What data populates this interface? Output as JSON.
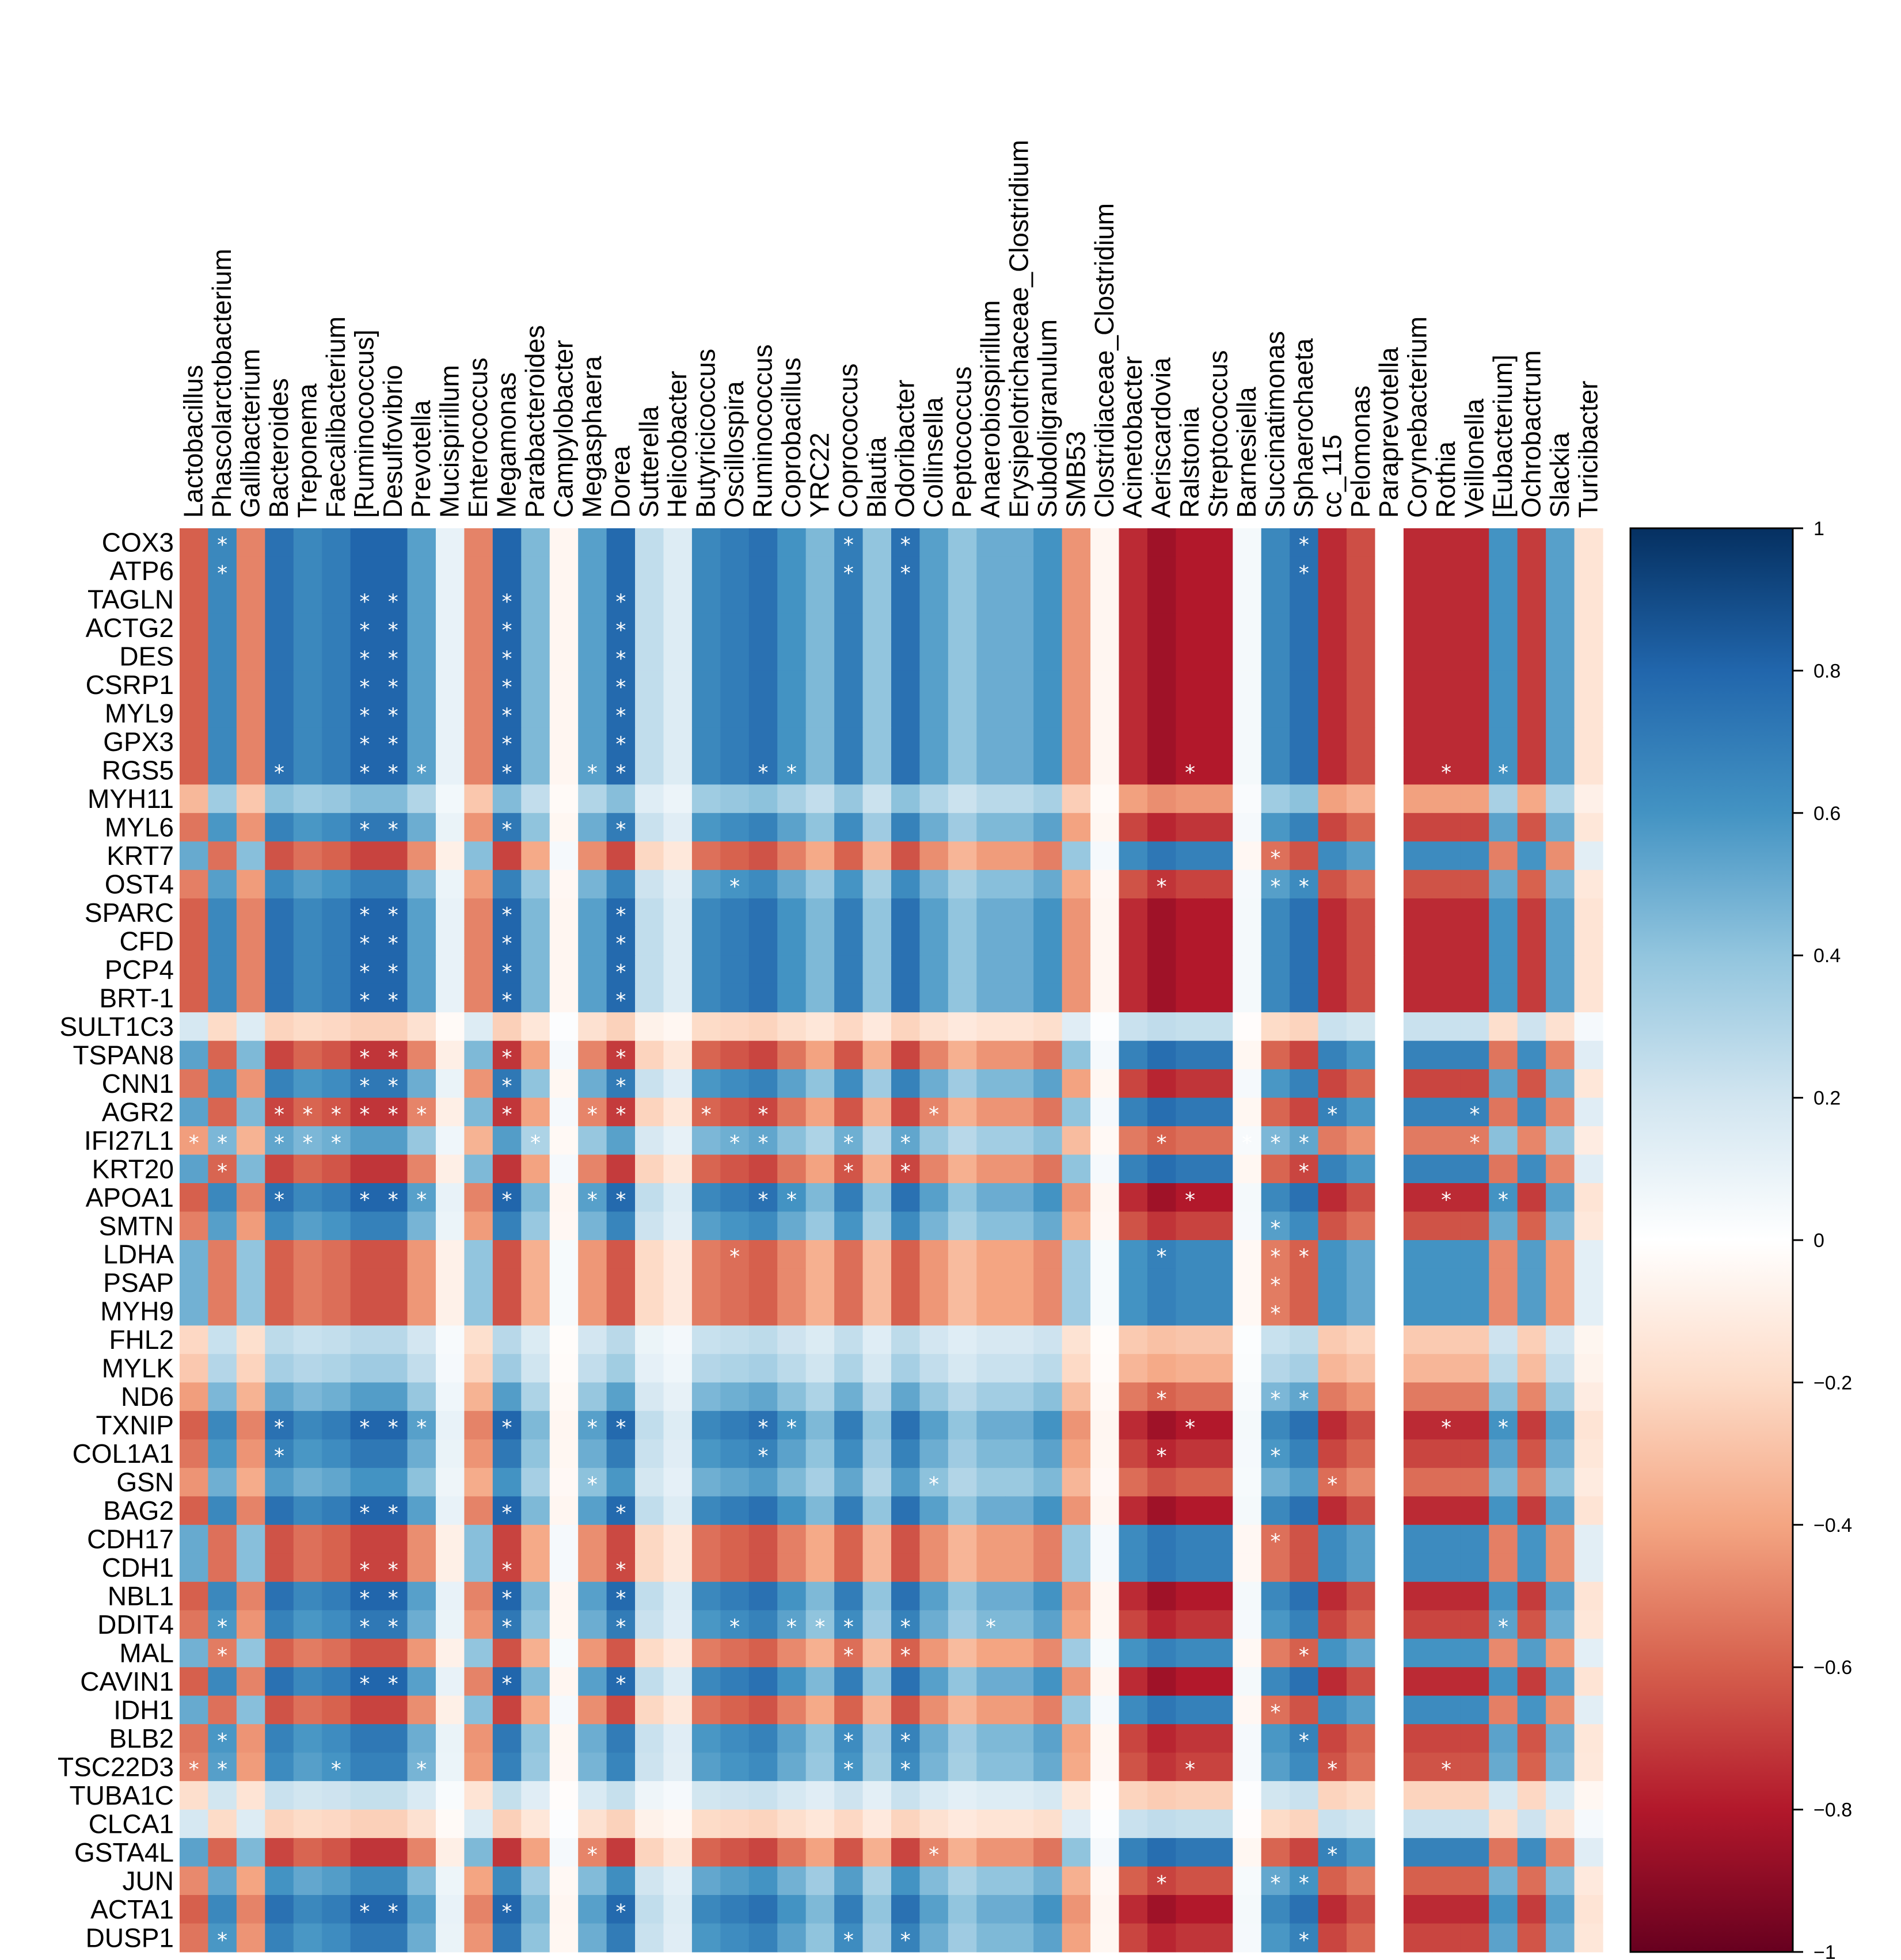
{
  "chart_data": {
    "type": "heatmap",
    "title": "",
    "columns": [
      "Lactobacillus",
      "Phascolarctobacterium",
      "Gallibacterium",
      "Bacteroides",
      "Treponema",
      "Faecalibacterium",
      "[Ruminococcus]",
      "Desulfovibrio",
      "Prevotella",
      "Mucispirillum",
      "Enterococcus",
      "Megamonas",
      "Parabacteroides",
      "Campylobacter",
      "Megasphaera",
      "Dorea",
      "Sutterella",
      "Helicobacter",
      "Butyricicoccus",
      "Oscillospira",
      "Ruminococcus",
      "Coprobacillus",
      "YRC22",
      "Coprococcus",
      "Blautia",
      "Odoribacter",
      "Collinsella",
      "Peptococcus",
      "Anaerobiospirillum",
      "Erysipelotrichaceae_Clostridium",
      "Subdoligranulum",
      "SMB53",
      "Clostridiaceae_Clostridium",
      "Acinetobacter",
      "Aeriscardovia",
      "Ralstonia",
      "Streptococcus",
      "Barnesiella",
      "Succinatimonas",
      "Sphaerochaeta",
      "cc_115",
      "Pelomonas",
      "Paraprevotella",
      "Corynebacterium",
      "Rothia",
      "Veillonella",
      "[Eubacterium]",
      "Ochrobactrum",
      "Slackia",
      "Turicibacter"
    ],
    "rows": [
      "COX3",
      "ATP6",
      "TAGLN",
      "ACTG2",
      "DES",
      "CSRP1",
      "MYL9",
      "GPX3",
      "RGS5",
      "MYH11",
      "MYL6",
      "KRT7",
      "OST4",
      "SPARC",
      "CFD",
      "PCP4",
      "BRT-1",
      "SULT1C3",
      "TSPAN8",
      "CNN1",
      "AGR2",
      "IFI27L1",
      "KRT20",
      "APOA1",
      "SMTN",
      "LDHA",
      "PSAP",
      "MYH9",
      "FHL2",
      "MYLK",
      "ND6",
      "TXNIP",
      "COL1A1",
      "GSN",
      "BAG2",
      "CDH17",
      "CDH1",
      "NBL1",
      "DDIT4",
      "MAL",
      "CAVIN1",
      "IDH1",
      "BLB2",
      "TSC22D3",
      "TUBA1C",
      "CLCA1",
      "GSTA4L",
      "JUN",
      "ACTA1",
      "DUSP1"
    ],
    "col_profile": [
      -0.6,
      0.65,
      -0.5,
      0.75,
      0.65,
      0.7,
      0.8,
      0.8,
      0.55,
      0.1,
      -0.5,
      0.8,
      0.45,
      -0.05,
      0.55,
      0.78,
      0.25,
      0.15,
      0.65,
      0.7,
      0.75,
      0.6,
      0.45,
      0.7,
      0.4,
      0.75,
      0.55,
      0.4,
      0.5,
      0.5,
      0.6,
      -0.45,
      -0.05,
      -0.75,
      -0.85,
      -0.8,
      -0.8,
      0.05,
      0.65,
      0.75,
      -0.75,
      -0.65,
      0.0,
      -0.75,
      -0.75,
      -0.75,
      0.6,
      -0.7,
      0.55,
      -0.15
    ],
    "row_profile": [
      1,
      1,
      1,
      1,
      1,
      1,
      1,
      1,
      1,
      0.55,
      0.9,
      -0.85,
      0.85,
      1,
      1,
      1,
      1,
      -0.3,
      -0.9,
      0.9,
      -0.9,
      0.7,
      -0.9,
      1,
      0.85,
      -0.8,
      -0.8,
      -0.8,
      0.35,
      0.45,
      0.7,
      1,
      0.9,
      0.75,
      1,
      -0.85,
      -0.85,
      1,
      0.9,
      -0.8,
      1,
      -0.85,
      0.9,
      0.85,
      0.3,
      -0.3,
      -0.9,
      0.8,
      1,
      0.9
    ],
    "significant": [
      [
        0,
        1
      ],
      [
        0,
        23
      ],
      [
        0,
        25
      ],
      [
        0,
        39
      ],
      [
        1,
        1
      ],
      [
        1,
        23
      ],
      [
        1,
        25
      ],
      [
        1,
        39
      ],
      [
        2,
        6
      ],
      [
        2,
        7
      ],
      [
        2,
        11
      ],
      [
        2,
        15
      ],
      [
        3,
        6
      ],
      [
        3,
        7
      ],
      [
        3,
        11
      ],
      [
        3,
        15
      ],
      [
        4,
        6
      ],
      [
        4,
        7
      ],
      [
        4,
        11
      ],
      [
        4,
        15
      ],
      [
        5,
        6
      ],
      [
        5,
        7
      ],
      [
        5,
        11
      ],
      [
        5,
        15
      ],
      [
        6,
        6
      ],
      [
        6,
        7
      ],
      [
        6,
        11
      ],
      [
        6,
        15
      ],
      [
        7,
        6
      ],
      [
        7,
        7
      ],
      [
        7,
        11
      ],
      [
        7,
        15
      ],
      [
        8,
        3
      ],
      [
        8,
        6
      ],
      [
        8,
        7
      ],
      [
        8,
        8
      ],
      [
        8,
        11
      ],
      [
        8,
        14
      ],
      [
        8,
        15
      ],
      [
        8,
        20
      ],
      [
        8,
        21
      ],
      [
        8,
        35
      ],
      [
        8,
        44
      ],
      [
        8,
        46
      ],
      [
        10,
        6
      ],
      [
        10,
        7
      ],
      [
        10,
        11
      ],
      [
        10,
        15
      ],
      [
        11,
        38
      ],
      [
        12,
        19
      ],
      [
        12,
        34
      ],
      [
        12,
        38
      ],
      [
        12,
        39
      ],
      [
        13,
        6
      ],
      [
        13,
        7
      ],
      [
        13,
        11
      ],
      [
        13,
        15
      ],
      [
        14,
        6
      ],
      [
        14,
        7
      ],
      [
        14,
        11
      ],
      [
        14,
        15
      ],
      [
        15,
        6
      ],
      [
        15,
        7
      ],
      [
        15,
        11
      ],
      [
        15,
        15
      ],
      [
        16,
        6
      ],
      [
        16,
        7
      ],
      [
        16,
        11
      ],
      [
        16,
        15
      ],
      [
        18,
        6
      ],
      [
        18,
        7
      ],
      [
        18,
        11
      ],
      [
        18,
        15
      ],
      [
        19,
        6
      ],
      [
        19,
        7
      ],
      [
        19,
        11
      ],
      [
        19,
        15
      ],
      [
        20,
        3
      ],
      [
        20,
        4
      ],
      [
        20,
        5
      ],
      [
        20,
        6
      ],
      [
        20,
        7
      ],
      [
        20,
        8
      ],
      [
        20,
        11
      ],
      [
        20,
        14
      ],
      [
        20,
        15
      ],
      [
        20,
        18
      ],
      [
        20,
        20
      ],
      [
        20,
        26
      ],
      [
        20,
        40
      ],
      [
        20,
        45
      ],
      [
        21,
        0
      ],
      [
        21,
        1
      ],
      [
        21,
        3
      ],
      [
        21,
        4
      ],
      [
        21,
        5
      ],
      [
        21,
        12
      ],
      [
        21,
        19
      ],
      [
        21,
        20
      ],
      [
        21,
        23
      ],
      [
        21,
        25
      ],
      [
        21,
        34
      ],
      [
        21,
        37
      ],
      [
        21,
        38
      ],
      [
        21,
        39
      ],
      [
        21,
        45
      ],
      [
        22,
        1
      ],
      [
        22,
        23
      ],
      [
        22,
        25
      ],
      [
        22,
        39
      ],
      [
        23,
        3
      ],
      [
        23,
        6
      ],
      [
        23,
        7
      ],
      [
        23,
        8
      ],
      [
        23,
        11
      ],
      [
        23,
        14
      ],
      [
        23,
        15
      ],
      [
        23,
        20
      ],
      [
        23,
        21
      ],
      [
        23,
        35
      ],
      [
        23,
        44
      ],
      [
        23,
        46
      ],
      [
        24,
        38
      ],
      [
        25,
        19
      ],
      [
        25,
        34
      ],
      [
        25,
        38
      ],
      [
        25,
        39
      ],
      [
        26,
        38
      ],
      [
        27,
        38
      ],
      [
        30,
        34
      ],
      [
        30,
        38
      ],
      [
        30,
        39
      ],
      [
        31,
        3
      ],
      [
        31,
        6
      ],
      [
        31,
        7
      ],
      [
        31,
        8
      ],
      [
        31,
        11
      ],
      [
        31,
        14
      ],
      [
        31,
        15
      ],
      [
        31,
        20
      ],
      [
        31,
        21
      ],
      [
        31,
        35
      ],
      [
        31,
        44
      ],
      [
        31,
        46
      ],
      [
        32,
        3
      ],
      [
        32,
        20
      ],
      [
        32,
        34
      ],
      [
        32,
        38
      ],
      [
        33,
        14
      ],
      [
        33,
        26
      ],
      [
        33,
        40
      ],
      [
        34,
        6
      ],
      [
        34,
        7
      ],
      [
        34,
        11
      ],
      [
        34,
        15
      ],
      [
        35,
        38
      ],
      [
        36,
        6
      ],
      [
        36,
        7
      ],
      [
        36,
        11
      ],
      [
        36,
        15
      ],
      [
        37,
        6
      ],
      [
        37,
        7
      ],
      [
        37,
        11
      ],
      [
        37,
        15
      ],
      [
        38,
        1
      ],
      [
        38,
        6
      ],
      [
        38,
        7
      ],
      [
        38,
        11
      ],
      [
        38,
        15
      ],
      [
        38,
        19
      ],
      [
        38,
        21
      ],
      [
        38,
        22
      ],
      [
        38,
        23
      ],
      [
        38,
        25
      ],
      [
        38,
        28
      ],
      [
        38,
        46
      ],
      [
        39,
        1
      ],
      [
        39,
        23
      ],
      [
        39,
        25
      ],
      [
        39,
        39
      ],
      [
        40,
        6
      ],
      [
        40,
        7
      ],
      [
        40,
        11
      ],
      [
        40,
        15
      ],
      [
        41,
        38
      ],
      [
        42,
        1
      ],
      [
        42,
        23
      ],
      [
        42,
        25
      ],
      [
        42,
        39
      ],
      [
        43,
        0
      ],
      [
        43,
        1
      ],
      [
        43,
        5
      ],
      [
        43,
        8
      ],
      [
        43,
        23
      ],
      [
        43,
        25
      ],
      [
        43,
        35
      ],
      [
        43,
        40
      ],
      [
        43,
        44
      ],
      [
        46,
        14
      ],
      [
        46,
        26
      ],
      [
        46,
        40
      ],
      [
        47,
        34
      ],
      [
        47,
        38
      ],
      [
        47,
        39
      ],
      [
        48,
        6
      ],
      [
        48,
        7
      ],
      [
        48,
        11
      ],
      [
        48,
        15
      ],
      [
        49,
        1
      ],
      [
        49,
        23
      ],
      [
        49,
        25
      ],
      [
        49,
        39
      ]
    ],
    "star_symbol": "*",
    "colorbar": {
      "min": -1,
      "max": 1,
      "ticks": [
        "1",
        "0.8",
        "0.6",
        "0.4",
        "0.2",
        "0",
        "−0.2",
        "−0.4",
        "−0.6",
        "−0.8",
        "−1"
      ]
    },
    "colors": {
      "low": "#67001f",
      "mid": "#ffffff",
      "high": "#053061",
      "scale": [
        "#67001f",
        "#b2182b",
        "#d6604d",
        "#f4a582",
        "#fddbc7",
        "#ffffff",
        "#d1e5f0",
        "#92c5de",
        "#4393c3",
        "#2166ac",
        "#053061"
      ]
    }
  }
}
